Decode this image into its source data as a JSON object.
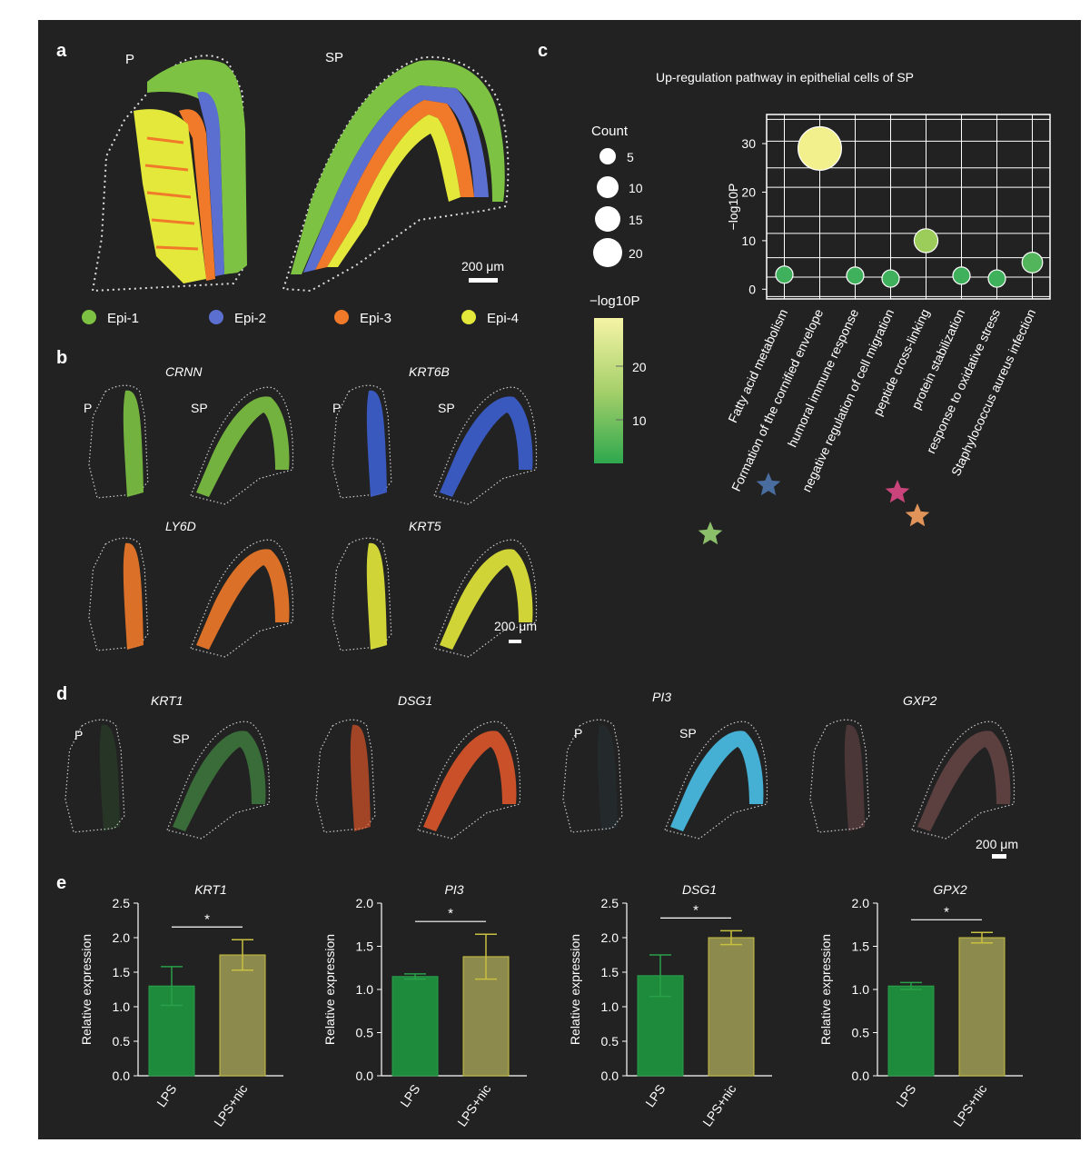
{
  "panels": {
    "a": {
      "letter": "a",
      "tissue_labels": [
        "P",
        "SP"
      ],
      "scale_bar": "200 μm",
      "legend": [
        {
          "label": "Epi-1",
          "color": "#7dc242"
        },
        {
          "label": "Epi-2",
          "color": "#5b6fd0"
        },
        {
          "label": "Epi-3",
          "color": "#f07a2a"
        },
        {
          "label": "Epi-4",
          "color": "#e3e83a"
        }
      ]
    },
    "b": {
      "letter": "b",
      "genes": [
        "CRNN",
        "KRT6B",
        "LY6D",
        "KRT5"
      ],
      "tissue_labels": [
        "P",
        "SP"
      ],
      "scale_bar": "200 μm"
    },
    "c": {
      "letter": "c",
      "title": "Up-regulation pathway in epithelial cells of SP",
      "count_legend_title": "Count",
      "count_legend_values": [
        "5",
        "10",
        "15",
        "20"
      ],
      "colorbar_title": "−log10P",
      "colorbar_ticks": [
        "20",
        "10"
      ]
    },
    "d": {
      "letter": "d",
      "genes": [
        "KRT1",
        "DSG1",
        "PI3",
        "GXP2"
      ],
      "tissue_labels": [
        "P",
        "SP"
      ],
      "scale_bar": "200 μm"
    },
    "e": {
      "letter": "e"
    }
  },
  "chart_data": [
    {
      "type": "scatter",
      "title": "Up-regulation pathway in epithelial cells of SP",
      "ylabel": "−log10P",
      "ylim": [
        -2,
        36
      ],
      "yticks": [
        "0",
        "10",
        "20",
        "30"
      ],
      "categories": [
        "Fatty acid metabolism",
        "Formation of the cornified envelope",
        "humoral immune response",
        "negative regulation of cell migration",
        "peptide cross-linking",
        "protein stabilization",
        "response to oxidative stress",
        "Staphylococcus aureus infection"
      ],
      "values": [
        3,
        29,
        2.8,
        2.2,
        10,
        2.8,
        2.2,
        5.5
      ],
      "count": [
        5,
        21,
        5,
        5,
        9,
        5,
        5,
        7
      ],
      "colors": [
        "#3fb05c",
        "#f2f08c",
        "#3fb05c",
        "#3fb05c",
        "#9ccc5a",
        "#3fb05c",
        "#3fb05c",
        "#52b55c"
      ],
      "star_colors": [
        "#8bbf6a",
        "#4a6da0",
        null,
        null,
        null,
        "#c8447a",
        "#e0945a",
        null
      ]
    },
    {
      "type": "bar",
      "title": "KRT1",
      "ylabel": "Relative expression",
      "categories": [
        "LPS",
        "LPS+nic"
      ],
      "values": [
        1.3,
        1.75
      ],
      "errors": [
        0.28,
        0.22
      ],
      "ylim": [
        0,
        2.5
      ],
      "yticks": [
        "0.0",
        "0.5",
        "1.0",
        "1.5",
        "2.0",
        "2.5"
      ],
      "significance": "*"
    },
    {
      "type": "bar",
      "title": "PI3",
      "ylabel": "Relative expression",
      "categories": [
        "LPS",
        "LPS+nic"
      ],
      "values": [
        1.15,
        1.38
      ],
      "errors": [
        0.03,
        0.26
      ],
      "ylim": [
        0,
        2.0
      ],
      "yticks": [
        "0.0",
        "0.5",
        "1.0",
        "1.5",
        "2.0"
      ],
      "significance": "*"
    },
    {
      "type": "bar",
      "title": "DSG1",
      "ylabel": "Relative expression",
      "categories": [
        "LPS",
        "LPS+nic"
      ],
      "values": [
        1.45,
        2.0
      ],
      "errors": [
        0.3,
        0.1
      ],
      "ylim": [
        0,
        2.5
      ],
      "yticks": [
        "0.0",
        "0.5",
        "1.0",
        "1.5",
        "2.0",
        "2.5"
      ],
      "significance": "*"
    },
    {
      "type": "bar",
      "title": "GPX2",
      "ylabel": "Relative expression",
      "categories": [
        "LPS",
        "LPS+nic"
      ],
      "values": [
        1.04,
        1.6
      ],
      "errors": [
        0.04,
        0.06
      ],
      "ylim": [
        0,
        2.0
      ],
      "yticks": [
        "0.0",
        "0.5",
        "1.0",
        "1.5",
        "2.0"
      ],
      "significance": "*"
    }
  ],
  "bar_colors": {
    "LPS": "#1e8a3c",
    "LPS+nic": "#8c8a4c",
    "LPS_error": "#2aa04a",
    "LPS+nic_error": "#c8c040"
  }
}
